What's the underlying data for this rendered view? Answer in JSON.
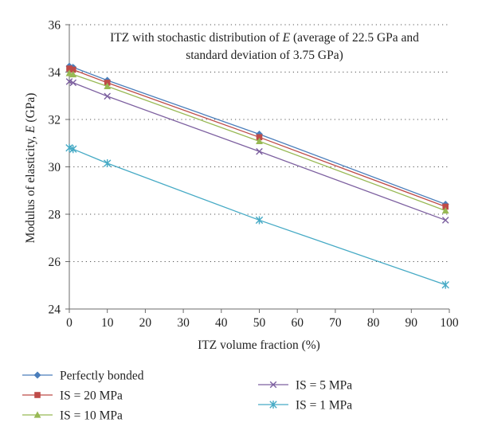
{
  "chart_data": {
    "type": "line",
    "annotation": {
      "line1_pre": "ITZ with stochastic distribution of ",
      "line1_var": "E",
      "line1_post": " (average of 22.5 GPa and",
      "line2": "standard deviation of 3.75 GPa)"
    },
    "xlabel": "ITZ volume fraction (%)",
    "ylabel_pre": "Modulus of elasticity, ",
    "ylabel_var": "E",
    "ylabel_post": " (GPa)",
    "xlim": [
      0,
      100
    ],
    "ylim": [
      24,
      36
    ],
    "xticks": [
      0,
      10,
      20,
      30,
      40,
      50,
      60,
      70,
      80,
      90,
      100
    ],
    "yticks": [
      24,
      26,
      28,
      30,
      32,
      34,
      36
    ],
    "grid": "horizontal dotted",
    "legend_placement": "bottom",
    "x": [
      0,
      1,
      10,
      50,
      99
    ],
    "series": [
      {
        "name": "Perfectly bonded",
        "color": "#4a7ebb",
        "marker": "diamond",
        "values": [
          34.25,
          34.2,
          33.65,
          31.38,
          28.42
        ]
      },
      {
        "name": "IS = 20 MPa",
        "color": "#be4b48",
        "marker": "square",
        "values": [
          34.15,
          34.1,
          33.55,
          31.25,
          28.32
        ]
      },
      {
        "name": "IS = 10 MPa",
        "color": "#98b954",
        "marker": "triangle",
        "values": [
          33.95,
          33.9,
          33.4,
          31.08,
          28.15
        ]
      },
      {
        "name": "IS = 5 MPa",
        "color": "#7d60a0",
        "marker": "x",
        "values": [
          33.6,
          33.55,
          32.98,
          30.65,
          27.75
        ]
      },
      {
        "name": "IS = 1 MPa",
        "color": "#46aac5",
        "marker": "star",
        "values": [
          30.8,
          30.75,
          30.15,
          27.75,
          25.02
        ]
      }
    ]
  }
}
